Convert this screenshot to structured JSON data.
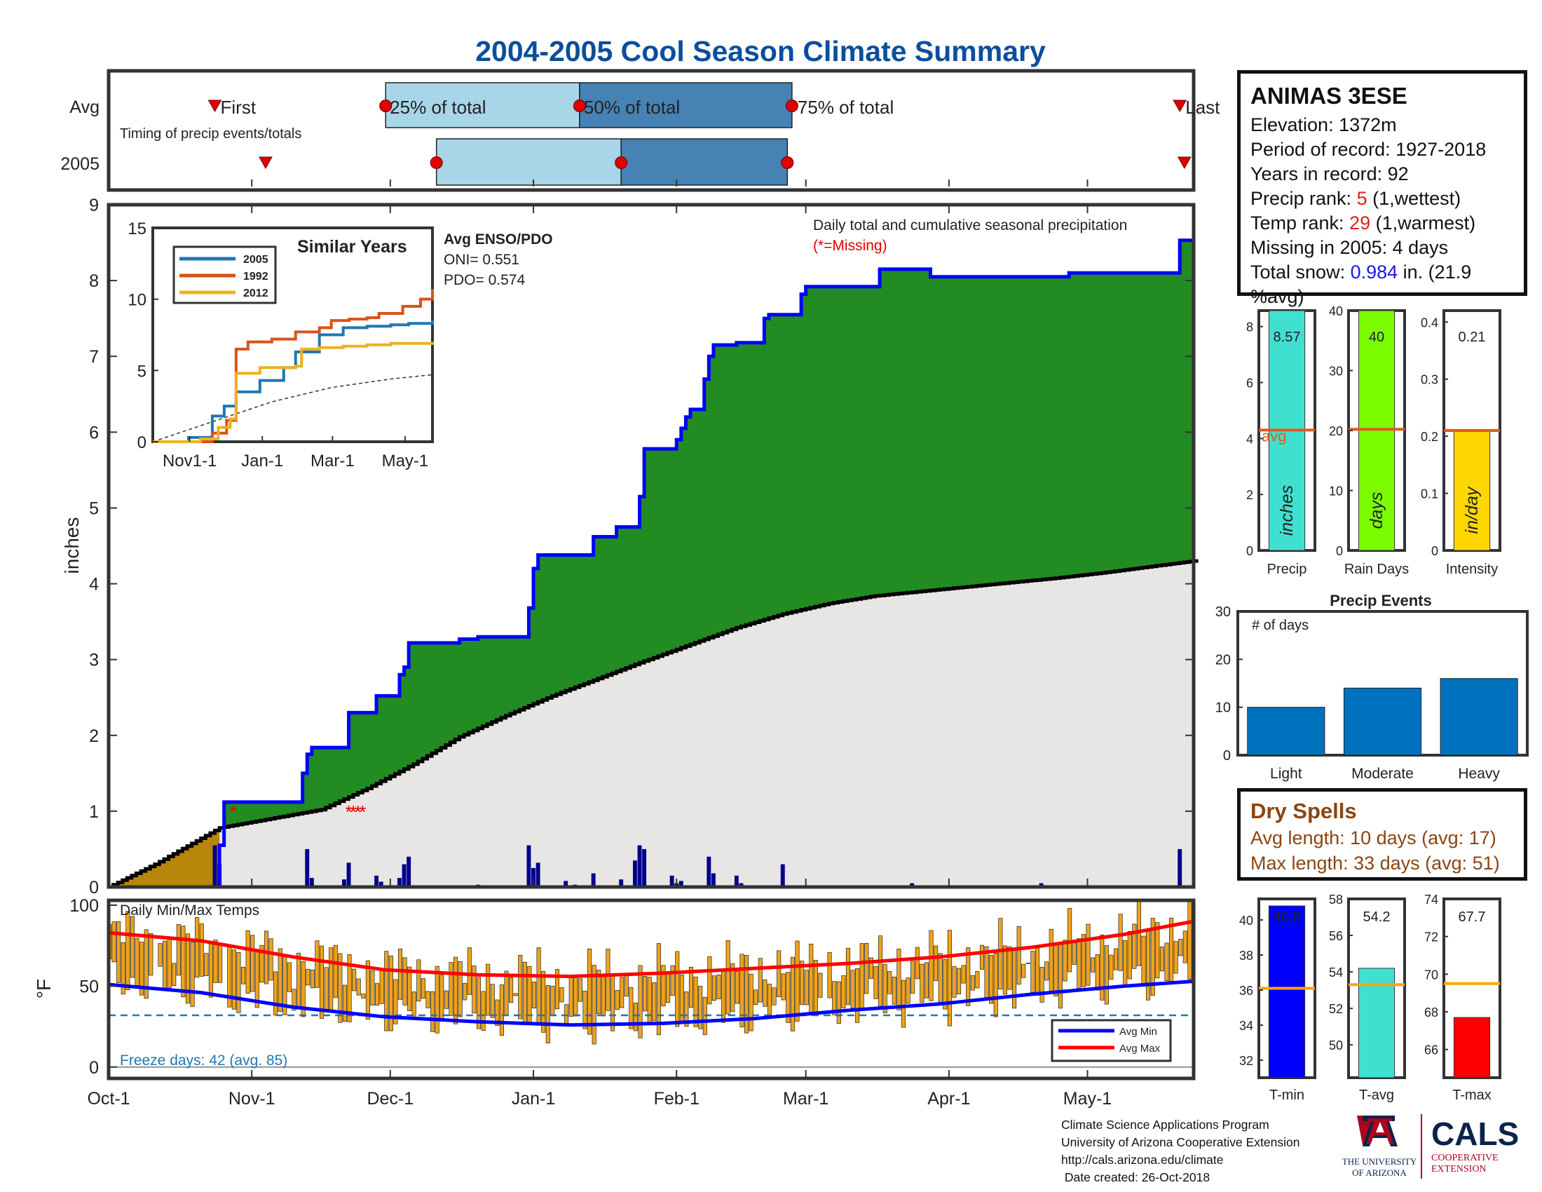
{
  "title": "2004-2005 Cool Season Climate Summary",
  "colors": {
    "title": "#0a4f9c",
    "precip_fill": "#228b22",
    "cum_line": "#0000ff",
    "avg_fill": "#e8e6e5",
    "past_fill": "#b8860b",
    "daily_bar": "#00008b",
    "temp_bar": "#f0a31a",
    "avg_max": "#ff0000",
    "avg_min": "#0000ff",
    "timing_light": "#a9d5e8",
    "timing_dark": "#4682b4",
    "marker": "#e00000"
  },
  "station": {
    "name": "ANIMAS 3ESE",
    "elevation": "Elevation: 1372m",
    "period": "Period of record: 1927-2018",
    "years": "Years in record: 92",
    "precip_rank_label": "Precip rank: ",
    "precip_rank": "5",
    "precip_rank_note": " (1,wettest)",
    "temp_rank_label": "Temp rank: ",
    "temp_rank": "29",
    "temp_rank_note": " (1,warmest)",
    "missing": "Missing in 2005: 4 days",
    "snow_label": "Total snow: ",
    "snow_value": "0.984",
    "snow_note": " in. (21.9 %avg)"
  },
  "dry_spells": {
    "title": "Dry Spells",
    "avg": "Avg length: 10 days (avg: 17)",
    "max": "Max length: 33 days (avg: 51)"
  },
  "footer": {
    "line1": "Climate Science Applications Program",
    "line2": "University of Arizona Cooperative Extension",
    "line3": "http://cals.arizona.edu/climate",
    "line4": " Date created: 26-Oct-2018"
  },
  "logos": {
    "ua_line1": "THE UNIVERSITY",
    "ua_line2": "OF ARIZONA",
    "cals": "CALS",
    "cals_line1": "COOPERATIVE",
    "cals_line2": "EXTENSION"
  },
  "chart_data": {
    "timing": {
      "row_labels": [
        "Avg",
        "2005"
      ],
      "note": "Timing of precip events/totals",
      "avg_labels": [
        "First",
        "25% of total",
        "50% of total",
        "75% of total",
        "Last"
      ],
      "avg_days": {
        "first": 23,
        "p25": 60,
        "p50": 102,
        "p75": 148,
        "last": 232
      },
      "y2005_days": {
        "first": 34,
        "p25": 71,
        "p50": 111,
        "p75": 147,
        "last": 233
      }
    },
    "main": {
      "type": "area",
      "ylabel": "inches",
      "ylim": [
        0,
        9
      ],
      "yticks": [
        0,
        1,
        2,
        3,
        4,
        5,
        6,
        7,
        8,
        9
      ],
      "xtick_labels": [
        "Oct-1",
        "Nov-1",
        "Dec-1",
        "Jan-1",
        "Feb-1",
        "Mar-1",
        "Apr-1",
        "May-1"
      ],
      "xtick_days": [
        0,
        31,
        61,
        92,
        123,
        151,
        182,
        212
      ],
      "n_days": 235,
      "season_label": "Daily total and cumulative seasonal precipitation",
      "missing_label": "(*=Missing)",
      "cumulative_2005_steps": [
        [
          0,
          0
        ],
        [
          24,
          0.55
        ],
        [
          25,
          1.12
        ],
        [
          42,
          1.5
        ],
        [
          43,
          1.75
        ],
        [
          44,
          1.84
        ],
        [
          52,
          2.3
        ],
        [
          58,
          2.52
        ],
        [
          63,
          2.8
        ],
        [
          64,
          2.9
        ],
        [
          65,
          3.22
        ],
        [
          76,
          3.27
        ],
        [
          80,
          3.3
        ],
        [
          91,
          3.68
        ],
        [
          92,
          4.2
        ],
        [
          93,
          4.38
        ],
        [
          105,
          4.62
        ],
        [
          110,
          4.75
        ],
        [
          115,
          5.15
        ],
        [
          116,
          5.78
        ],
        [
          123,
          5.9
        ],
        [
          124,
          6.05
        ],
        [
          125,
          6.2
        ],
        [
          126,
          6.3
        ],
        [
          129,
          6.7
        ],
        [
          130,
          7.0
        ],
        [
          131,
          7.15
        ],
        [
          136,
          7.18
        ],
        [
          142,
          7.5
        ],
        [
          143,
          7.55
        ],
        [
          150,
          7.82
        ],
        [
          151,
          7.92
        ],
        [
          167,
          8.15
        ],
        [
          178,
          8.05
        ],
        [
          208,
          8.1
        ],
        [
          232,
          8.53
        ],
        [
          235,
          8.53
        ]
      ],
      "average_cumulative_pts": [
        [
          0,
          0
        ],
        [
          10,
          0.3
        ],
        [
          24,
          0.78
        ],
        [
          35,
          0.9
        ],
        [
          46,
          1.02
        ],
        [
          56,
          1.3
        ],
        [
          66,
          1.62
        ],
        [
          76,
          1.98
        ],
        [
          86,
          2.26
        ],
        [
          96,
          2.52
        ],
        [
          106,
          2.75
        ],
        [
          116,
          2.98
        ],
        [
          126,
          3.2
        ],
        [
          136,
          3.42
        ],
        [
          146,
          3.6
        ],
        [
          156,
          3.74
        ],
        [
          166,
          3.84
        ],
        [
          176,
          3.9
        ],
        [
          186,
          3.96
        ],
        [
          196,
          4.02
        ],
        [
          206,
          4.08
        ],
        [
          216,
          4.15
        ],
        [
          226,
          4.23
        ],
        [
          235,
          4.3
        ]
      ],
      "daily_bars": [
        [
          23,
          0.55
        ],
        [
          24,
          0.3
        ],
        [
          43,
          0.5
        ],
        [
          44,
          0.12
        ],
        [
          51,
          0.1
        ],
        [
          52,
          0.32
        ],
        [
          58,
          0.15
        ],
        [
          59,
          0.07
        ],
        [
          63,
          0.12
        ],
        [
          64,
          0.3
        ],
        [
          65,
          0.4
        ],
        [
          80,
          0.03
        ],
        [
          91,
          0.55
        ],
        [
          92,
          0.25
        ],
        [
          93,
          0.32
        ],
        [
          99,
          0.08
        ],
        [
          101,
          0.03
        ],
        [
          105,
          0.18
        ],
        [
          111,
          0.1
        ],
        [
          114,
          0.35
        ],
        [
          115,
          0.55
        ],
        [
          116,
          0.5
        ],
        [
          122,
          0.15
        ],
        [
          123,
          0.05
        ],
        [
          124,
          0.08
        ],
        [
          130,
          0.4
        ],
        [
          131,
          0.18
        ],
        [
          136,
          0.15
        ],
        [
          137,
          0.05
        ],
        [
          146,
          0.3
        ],
        [
          174,
          0.05
        ],
        [
          202,
          0.05
        ],
        [
          232,
          0.5
        ]
      ],
      "missing_days": [
        27,
        52,
        53,
        54,
        55
      ]
    },
    "similar_years": {
      "title": "Similar Years",
      "xtick_labels": [
        "Nov1-1",
        "Jan-1",
        "Mar-1",
        "May-1"
      ],
      "ylim": [
        0,
        15
      ],
      "yticks": [
        0,
        5,
        10,
        15
      ],
      "series": [
        {
          "name": "2005",
          "color": "#1f77b4",
          "pts": [
            [
              0,
              0
            ],
            [
              30,
              0.3
            ],
            [
              50,
              1.8
            ],
            [
              60,
              2.5
            ],
            [
              70,
              3.5
            ],
            [
              90,
              4.3
            ],
            [
              110,
              5.2
            ],
            [
              120,
              6.3
            ],
            [
              140,
              7.5
            ],
            [
              160,
              8.0
            ],
            [
              180,
              8.1
            ],
            [
              200,
              8.2
            ],
            [
              215,
              8.3
            ],
            [
              235,
              8.5
            ]
          ]
        },
        {
          "name": "1992",
          "color": "#d95319",
          "pts": [
            [
              0,
              0
            ],
            [
              50,
              0.6
            ],
            [
              62,
              1.5
            ],
            [
              70,
              6.5
            ],
            [
              80,
              7.0
            ],
            [
              100,
              7.2
            ],
            [
              120,
              7.7
            ],
            [
              140,
              8.0
            ],
            [
              150,
              8.5
            ],
            [
              165,
              8.6
            ],
            [
              180,
              8.7
            ],
            [
              190,
              9.0
            ],
            [
              210,
              9.5
            ],
            [
              225,
              10.0
            ],
            [
              235,
              10.7
            ]
          ]
        },
        {
          "name": "2012",
          "color": "#edb120",
          "pts": [
            [
              0,
              0
            ],
            [
              40,
              0.2
            ],
            [
              55,
              1.0
            ],
            [
              65,
              1.6
            ],
            [
              70,
              4.8
            ],
            [
              90,
              5.2
            ],
            [
              120,
              5.3
            ],
            [
              125,
              6.5
            ],
            [
              140,
              6.6
            ],
            [
              160,
              6.7
            ],
            [
              180,
              6.8
            ],
            [
              200,
              6.9
            ],
            [
              235,
              7.0
            ]
          ]
        }
      ],
      "average_pts": [
        [
          0,
          0
        ],
        [
          50,
          1.4
        ],
        [
          100,
          2.8
        ],
        [
          150,
          3.8
        ],
        [
          200,
          4.4
        ],
        [
          235,
          4.7
        ]
      ]
    },
    "enso": {
      "title": "Avg ENSO/PDO",
      "oni": "ONI= 0.551",
      "pdo": "PDO= 0.574"
    },
    "precip_bars": [
      {
        "xlabel": "Precip",
        "ylim": [
          0,
          8.57
        ],
        "yticks": [
          0,
          2,
          4,
          6,
          8
        ],
        "value": 8.57,
        "avg": 4.3,
        "value_label": "8.57",
        "unit": "inches",
        "color": "#40e0d0",
        "avg_label": "avg"
      },
      {
        "xlabel": "Rain Days",
        "ylim": [
          0,
          40
        ],
        "yticks": [
          0,
          10,
          20,
          30,
          40
        ],
        "value": 40,
        "avg": 20.2,
        "value_label": "40",
        "unit": "days",
        "color": "#7cfc00"
      },
      {
        "xlabel": "Intensity",
        "ylim": [
          0,
          0.42
        ],
        "yticks": [
          0,
          0.1,
          0.2,
          0.3,
          0.4
        ],
        "value": 0.21,
        "avg": 0.21,
        "value_label": "0.21",
        "unit": "in/day",
        "color": "#ffd700"
      }
    ],
    "events": {
      "title": "Precip Events",
      "ylabel": "# of days",
      "ylim": [
        0,
        30
      ],
      "yticks": [
        0,
        10,
        20,
        30
      ],
      "categories": [
        "Light",
        "Moderate",
        "Heavy"
      ],
      "values": [
        10,
        14,
        16
      ],
      "color": "#0072bd"
    },
    "temps": {
      "title": "Daily Min/Max Temps",
      "ylabel": "°F",
      "ylim": [
        -7,
        103
      ],
      "yticks": [
        0,
        50,
        100
      ],
      "freeze_line": 32,
      "freeze_label": "Freeze days: 42 (avg. 85)",
      "legend": [
        "Avg Min",
        "Avg Max"
      ],
      "avg_max_pts": [
        [
          0,
          83
        ],
        [
          20,
          78
        ],
        [
          40,
          68
        ],
        [
          60,
          60
        ],
        [
          80,
          57
        ],
        [
          100,
          56
        ],
        [
          120,
          58
        ],
        [
          140,
          61
        ],
        [
          160,
          64
        ],
        [
          180,
          68
        ],
        [
          200,
          74
        ],
        [
          220,
          82
        ],
        [
          235,
          90
        ]
      ],
      "avg_min_pts": [
        [
          0,
          51
        ],
        [
          20,
          46
        ],
        [
          40,
          37
        ],
        [
          60,
          31
        ],
        [
          80,
          28
        ],
        [
          100,
          26
        ],
        [
          120,
          27
        ],
        [
          140,
          30
        ],
        [
          160,
          35
        ],
        [
          180,
          39
        ],
        [
          200,
          45
        ],
        [
          220,
          50
        ],
        [
          235,
          53
        ]
      ]
    },
    "temp_bars": [
      {
        "xlabel": "T-min",
        "ylim": [
          31,
          41.2
        ],
        "yticks": [
          32,
          34,
          36,
          38,
          40
        ],
        "value": 40.8,
        "avg": 36.1,
        "value_label": "40.8",
        "color": "#0000ff"
      },
      {
        "xlabel": "T-avg",
        "ylim": [
          48.2,
          58
        ],
        "yticks": [
          50,
          52,
          54,
          56,
          58
        ],
        "value": 54.2,
        "avg": 53.3,
        "value_label": "54.2",
        "color": "#40e0d0"
      },
      {
        "xlabel": "T-max",
        "ylim": [
          64.5,
          74
        ],
        "yticks": [
          66,
          68,
          70,
          72,
          74
        ],
        "value": 67.7,
        "avg": 69.5,
        "value_label": "67.7",
        "color": "#ff0000"
      }
    ]
  }
}
